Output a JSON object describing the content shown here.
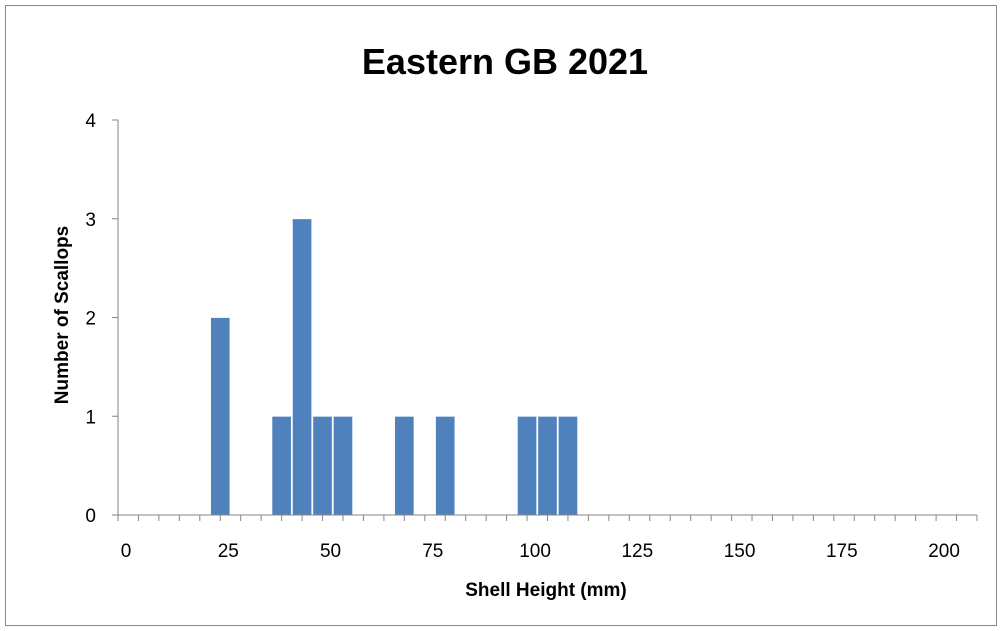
{
  "chart_data": {
    "type": "bar",
    "title": "Eastern GB 2021",
    "xlabel": "Shell Height (mm)",
    "ylabel": "Number of Scallops",
    "bin_width_mm": 5,
    "x_start_mm": 0,
    "x_end_mm": 210,
    "xlim": [
      0,
      210
    ],
    "ylim": [
      0,
      4
    ],
    "x_ticks": [
      "0",
      "25",
      "50",
      "75",
      "100",
      "125",
      "150",
      "175",
      "200"
    ],
    "y_ticks": [
      "0",
      "1",
      "2",
      "3",
      "4"
    ],
    "bars": [
      {
        "x": 25,
        "value": 2
      },
      {
        "x": 40,
        "value": 1
      },
      {
        "x": 45,
        "value": 3
      },
      {
        "x": 50,
        "value": 1
      },
      {
        "x": 55,
        "value": 1
      },
      {
        "x": 70,
        "value": 1
      },
      {
        "x": 80,
        "value": 1
      },
      {
        "x": 100,
        "value": 1
      },
      {
        "x": 105,
        "value": 1
      },
      {
        "x": 110,
        "value": 1
      }
    ],
    "bar_color": "#4F81BD",
    "grid": false,
    "legend": "none"
  }
}
